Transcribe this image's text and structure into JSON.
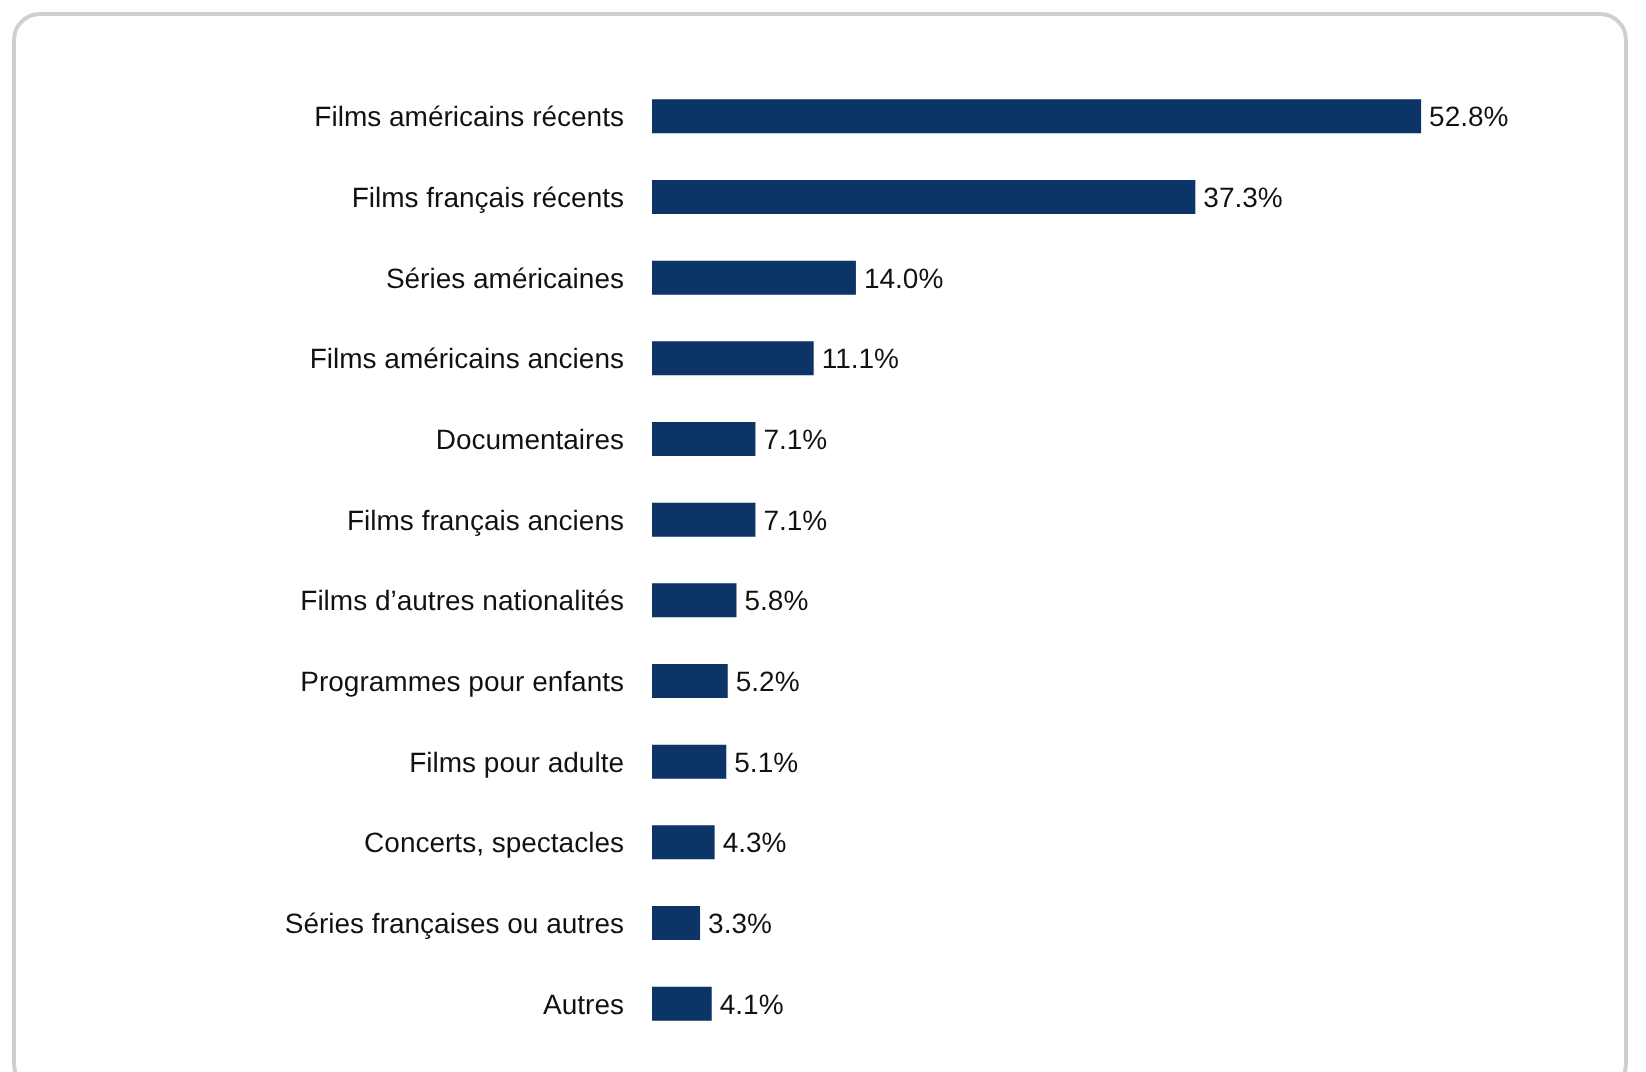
{
  "chart_data": {
    "type": "bar",
    "orientation": "horizontal",
    "categories": [
      "Films américains récents",
      "Films français récents",
      "Séries américaines",
      "Films américains anciens",
      "Documentaires",
      "Films français anciens",
      "Films d’autres nationalités",
      "Programmes pour enfants",
      "Films pour adulte",
      "Concerts, spectacles",
      "Séries françaises ou autres",
      "Autres"
    ],
    "series": [
      {
        "color": "#0d3466",
        "values": [
          52.8,
          37.3,
          14.0,
          11.1,
          7.1,
          7.1,
          5.8,
          5.2,
          5.1,
          4.3,
          3.3,
          4.1
        ],
        "value_labels": [
          "52.8%",
          "37.3%",
          "14.0%",
          "11.1%",
          "7.1%",
          "7.1%",
          "5.8%",
          "5.2%",
          "5.1%",
          "4.3%",
          "3.3%",
          "4.1%"
        ]
      }
    ]
  }
}
